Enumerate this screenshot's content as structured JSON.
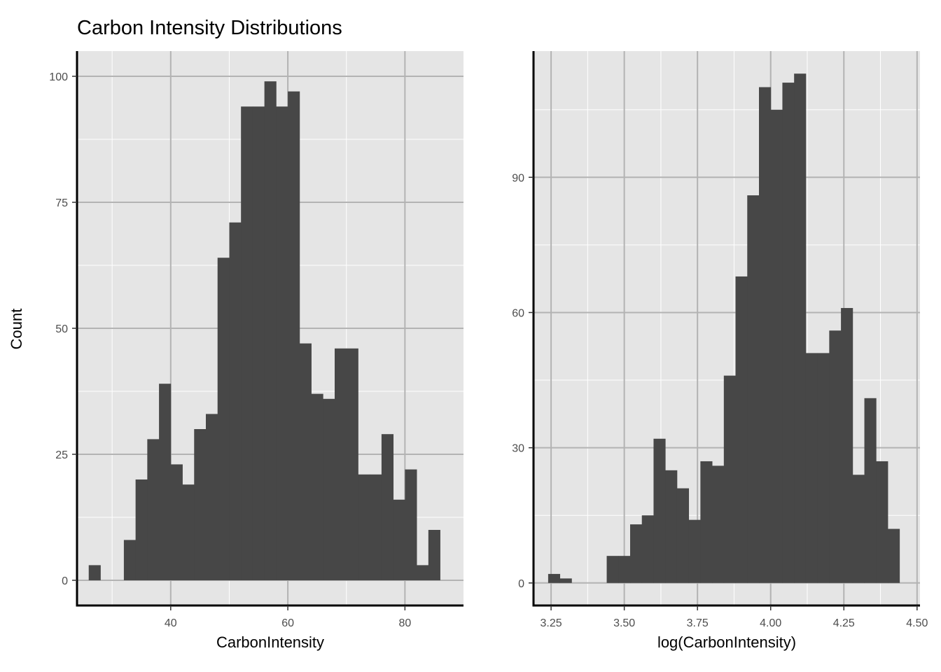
{
  "title": "Carbon Intensity Distributions",
  "ylabel": "Count",
  "chart_data": [
    {
      "type": "bar",
      "xlabel": "CarbonIntensity",
      "ylabel": "Count",
      "xlim": [
        24,
        90
      ],
      "ylim": [
        -5,
        105
      ],
      "x_ticks": [
        40,
        60,
        80
      ],
      "y_ticks": [
        0,
        25,
        50,
        75,
        100
      ],
      "bin_width": 2,
      "bin_start": 26,
      "values": [
        3,
        0,
        0,
        8,
        20,
        28,
        39,
        23,
        19,
        30,
        33,
        64,
        71,
        94,
        94,
        99,
        94,
        97,
        47,
        37,
        36,
        46,
        46,
        21,
        21,
        29,
        16,
        22,
        3,
        10
      ],
      "grid": true
    },
    {
      "type": "bar",
      "xlabel": "log(CarbonIntensity)",
      "ylabel": "Count",
      "xlim": [
        3.19,
        4.51
      ],
      "ylim": [
        -5,
        118
      ],
      "x_ticks": [
        "3.25",
        "3.50",
        "3.75",
        "4.00",
        "4.25",
        "4.50"
      ],
      "y_ticks": [
        0,
        30,
        60,
        90
      ],
      "bin_width": 0.04,
      "bin_start": 3.24,
      "values": [
        2,
        1,
        0,
        0,
        0,
        6,
        6,
        13,
        15,
        32,
        25,
        21,
        14,
        27,
        26,
        46,
        68,
        86,
        110,
        105,
        111,
        113,
        51,
        51,
        56,
        61,
        24,
        41,
        27,
        12
      ],
      "grid": true
    }
  ]
}
